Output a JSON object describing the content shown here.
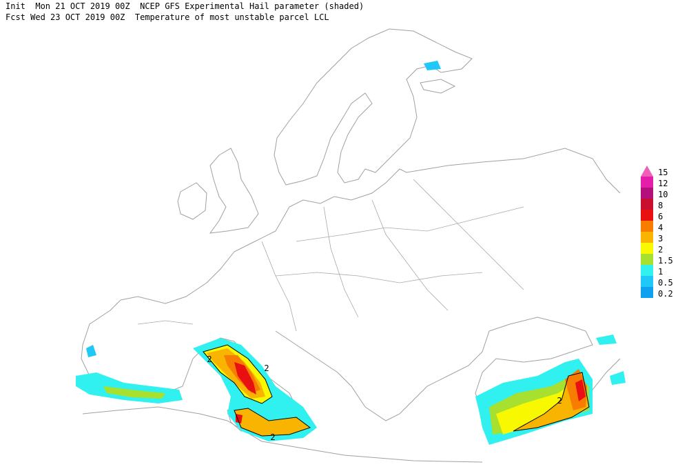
{
  "header": {
    "line1": "Init  Mon 21 OCT 2019 00Z  NCEP GFS Experimental Hail parameter (shaded)",
    "line2": "Fcst Wed 23 OCT 2019 00Z  Temperature of most unstable parcel LCL"
  },
  "legend": [
    {
      "label": "15",
      "color": "#f060b8"
    },
    {
      "label": "12",
      "color": "#e41ea8"
    },
    {
      "label": "10",
      "color": "#b4107c"
    },
    {
      "label": "8",
      "color": "#c8102e"
    },
    {
      "label": "6",
      "color": "#e81010"
    },
    {
      "label": "4",
      "color": "#f87c00"
    },
    {
      "label": "3",
      "color": "#f8b400"
    },
    {
      "label": "2",
      "color": "#f8f800"
    },
    {
      "label": "1.5",
      "color": "#a8e030"
    },
    {
      "label": "1",
      "color": "#30f0f0"
    },
    {
      "label": "0.5",
      "color": "#20c8f8"
    },
    {
      "label": "0.2",
      "color": "#10a0f0"
    }
  ],
  "contour_labels": [
    "2",
    "2",
    "2",
    "2"
  ]
}
